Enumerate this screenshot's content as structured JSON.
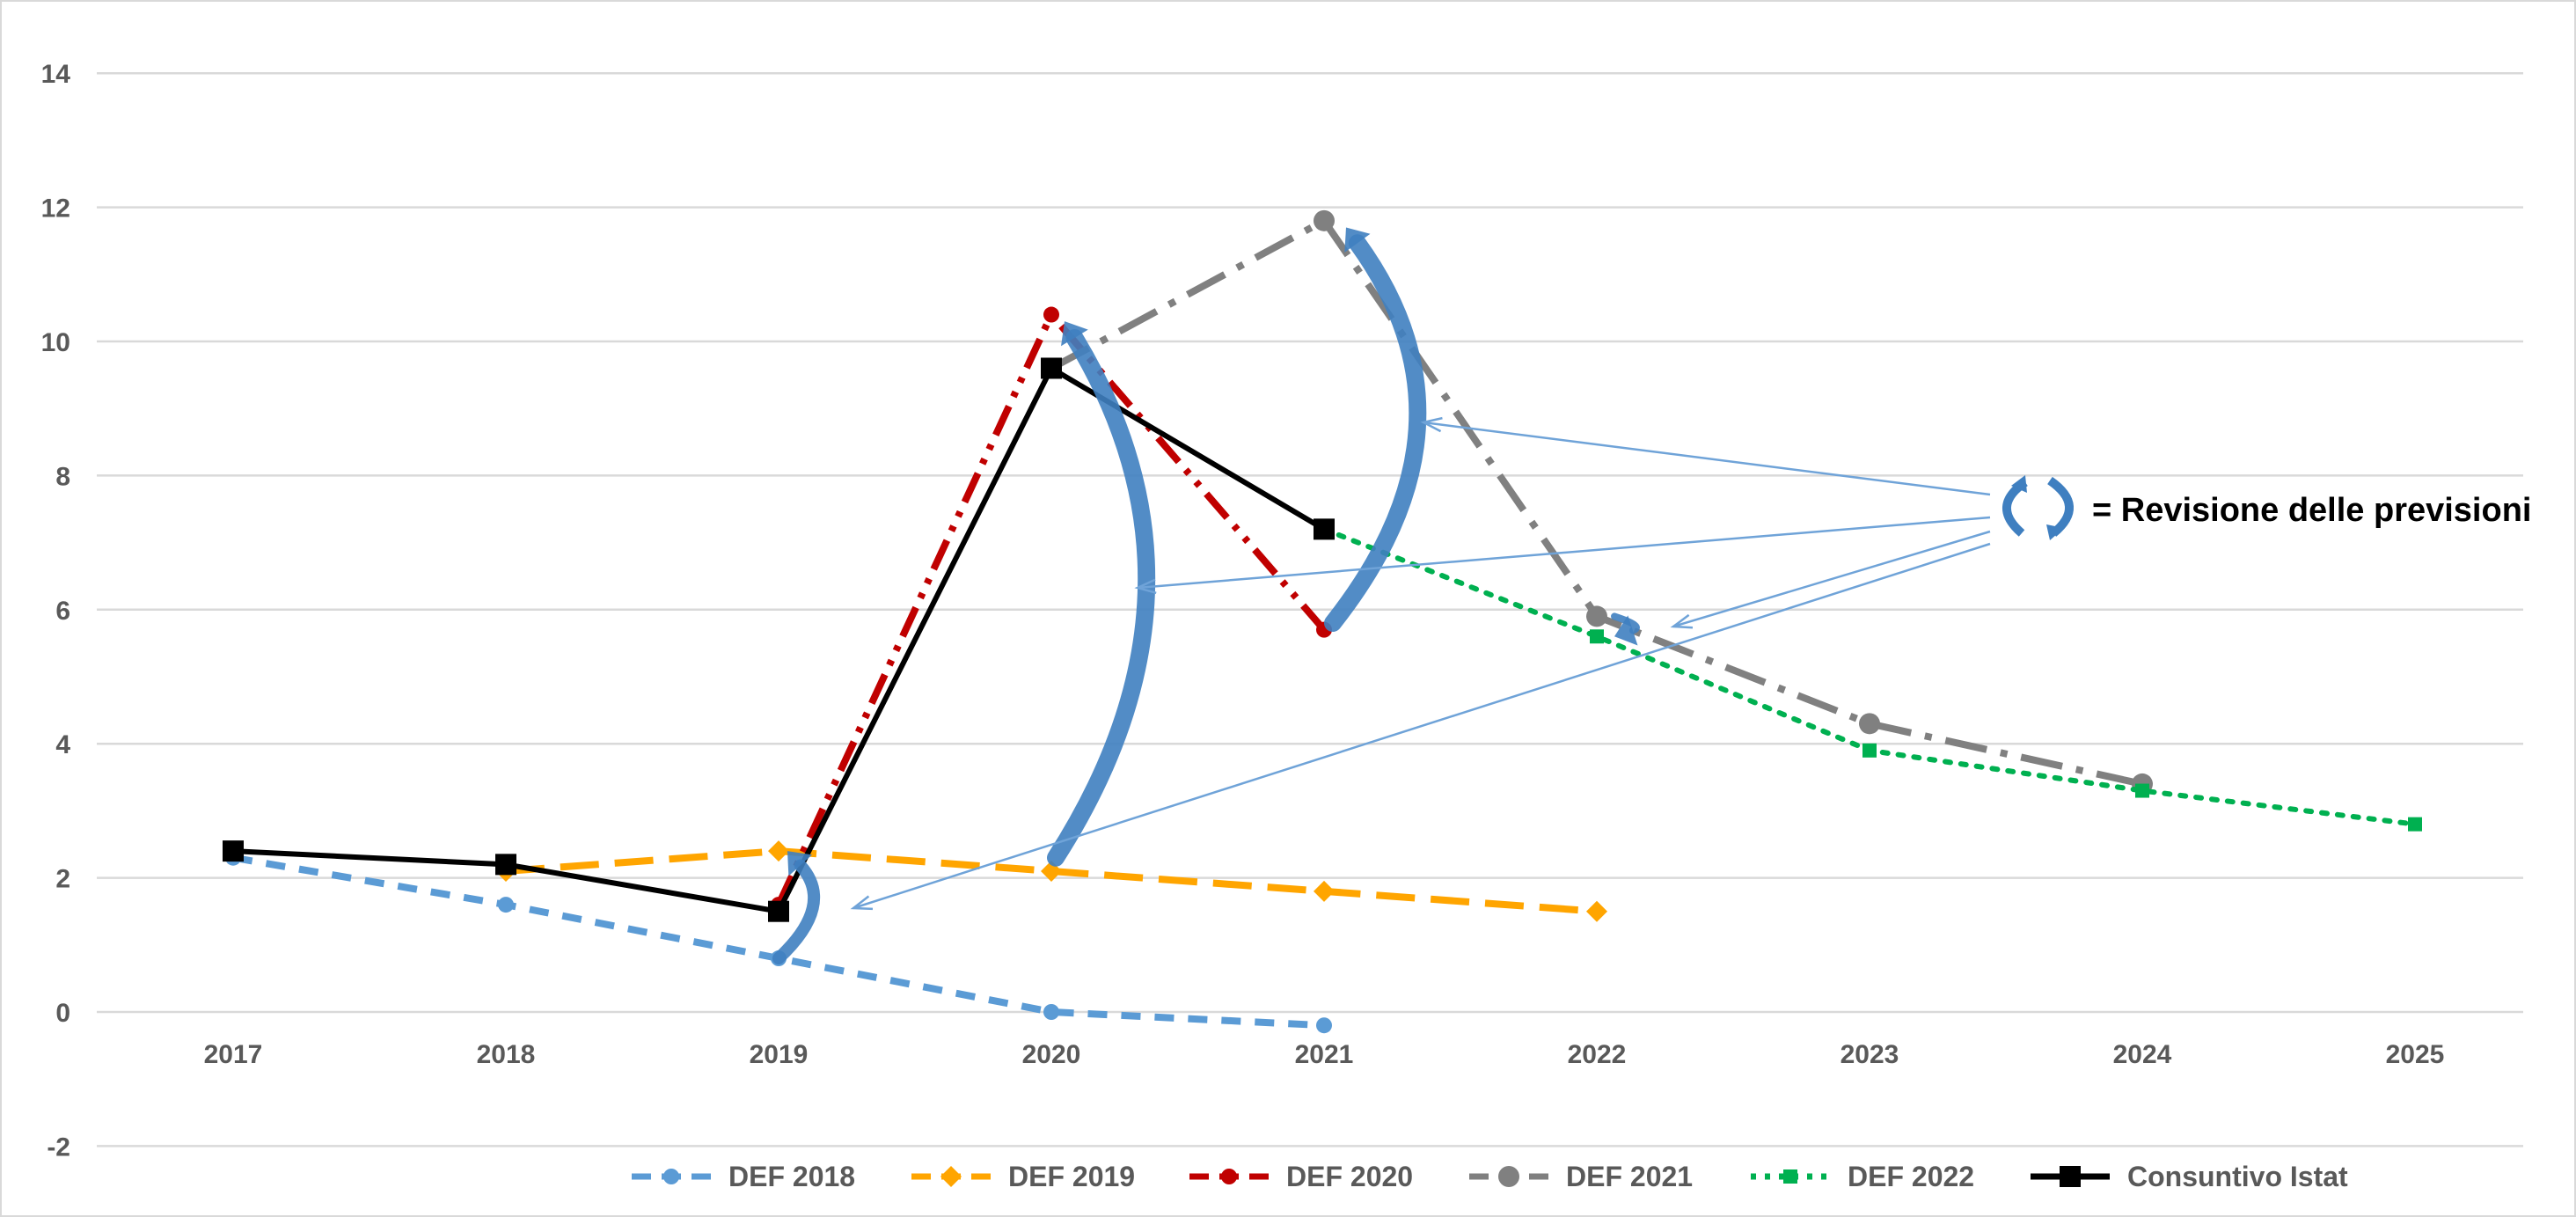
{
  "chart_data": {
    "type": "line",
    "x": [
      "2017",
      "2018",
      "2019",
      "2020",
      "2021",
      "2022",
      "2023",
      "2024",
      "2025"
    ],
    "ylim": [
      -2,
      14
    ],
    "yticks": [
      "-2",
      "0",
      "2",
      "4",
      "6",
      "8",
      "10",
      "12",
      "14"
    ],
    "grid": true,
    "legend_position": "bottom",
    "series": [
      {
        "name": "DEF 2018",
        "color": "#5b9bd5",
        "marker": "circle",
        "dash": "dash",
        "points": [
          [
            2017,
            2.3
          ],
          [
            2018,
            1.6
          ],
          [
            2019,
            0.8
          ],
          [
            2020,
            0.0
          ],
          [
            2021,
            -0.2
          ]
        ]
      },
      {
        "name": "DEF 2019",
        "color": "#ffa500",
        "marker": "diamond",
        "dash": "longdash",
        "points": [
          [
            2018,
            2.1
          ],
          [
            2019,
            2.4
          ],
          [
            2020,
            2.1
          ],
          [
            2021,
            1.8
          ],
          [
            2022,
            1.5
          ]
        ]
      },
      {
        "name": "DEF 2020",
        "color": "#c00000",
        "marker": "circle",
        "dash": "dashdotdot",
        "points": [
          [
            2019,
            1.6
          ],
          [
            2020,
            10.4
          ],
          [
            2021,
            5.7
          ]
        ]
      },
      {
        "name": "DEF 2021",
        "color": "#808080",
        "marker": "bigcircle",
        "dash": "dashdot",
        "points": [
          [
            2020,
            9.6
          ],
          [
            2021,
            11.8
          ],
          [
            2022,
            5.9
          ],
          [
            2023,
            4.3
          ],
          [
            2024,
            3.4
          ]
        ]
      },
      {
        "name": "DEF 2022",
        "color": "#00b050",
        "marker": "square",
        "dash": "dot",
        "points": [
          [
            2021,
            7.2
          ],
          [
            2022,
            5.6
          ],
          [
            2023,
            3.9
          ],
          [
            2024,
            3.3
          ],
          [
            2025,
            2.8
          ]
        ]
      },
      {
        "name": "Consuntivo Istat",
        "color": "#000000",
        "marker": "bigsquare",
        "dash": "solid",
        "points": [
          [
            2017,
            2.4
          ],
          [
            2018,
            2.2
          ],
          [
            2019,
            1.5
          ],
          [
            2020,
            9.6
          ],
          [
            2021,
            7.2
          ]
        ]
      }
    ],
    "annotation": "= Revisione delle previsioni"
  }
}
